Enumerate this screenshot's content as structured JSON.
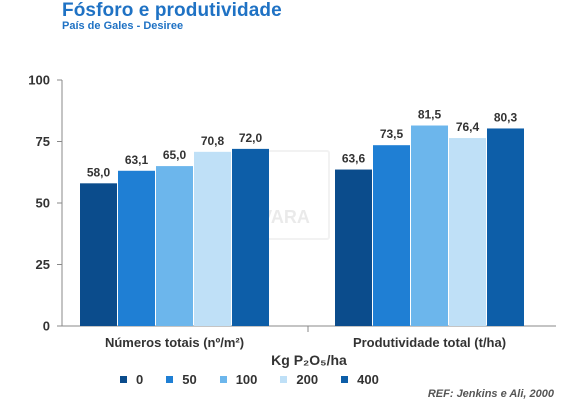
{
  "header": {
    "title": "Fósforo e produtividade",
    "subtitle": "País de Gales - Desiree"
  },
  "watermark": {
    "text": "VARA"
  },
  "reference": "REF: Jenkins e Ali, 2000",
  "chart_data": {
    "type": "bar",
    "title": "Fósforo e produtividade",
    "subtitle": "País de Gales - Desiree",
    "categories": [
      "Números totais (nº/m²)",
      "Produtividade total (t/ha)"
    ],
    "legend_title": "Kg P₂O₅/ha",
    "series": [
      {
        "name": "0",
        "color": "#0b4c8c",
        "values": [
          58.0,
          63.6
        ],
        "labels": [
          "58,0",
          "63,6"
        ]
      },
      {
        "name": "50",
        "color": "#1f7fd4",
        "values": [
          63.1,
          73.5
        ],
        "labels": [
          "63,1",
          "73,5"
        ]
      },
      {
        "name": "100",
        "color": "#6cb6ec",
        "values": [
          65.0,
          81.5
        ],
        "labels": [
          "65,0",
          "81,5"
        ]
      },
      {
        "name": "200",
        "color": "#bfe0f7",
        "values": [
          70.8,
          76.4
        ],
        "labels": [
          "70,8",
          "76,4"
        ]
      },
      {
        "name": "400",
        "color": "#0d5ea8",
        "values": [
          72.0,
          80.3
        ],
        "labels": [
          "72,0",
          "80,3"
        ]
      }
    ],
    "ylim": [
      0,
      100
    ],
    "yticks": [
      0,
      25,
      50,
      75,
      100
    ],
    "grid": false,
    "legend_position": "bottom",
    "colors": {
      "axis": "#888888",
      "text": "#333333",
      "title": "#1f72c4"
    }
  }
}
